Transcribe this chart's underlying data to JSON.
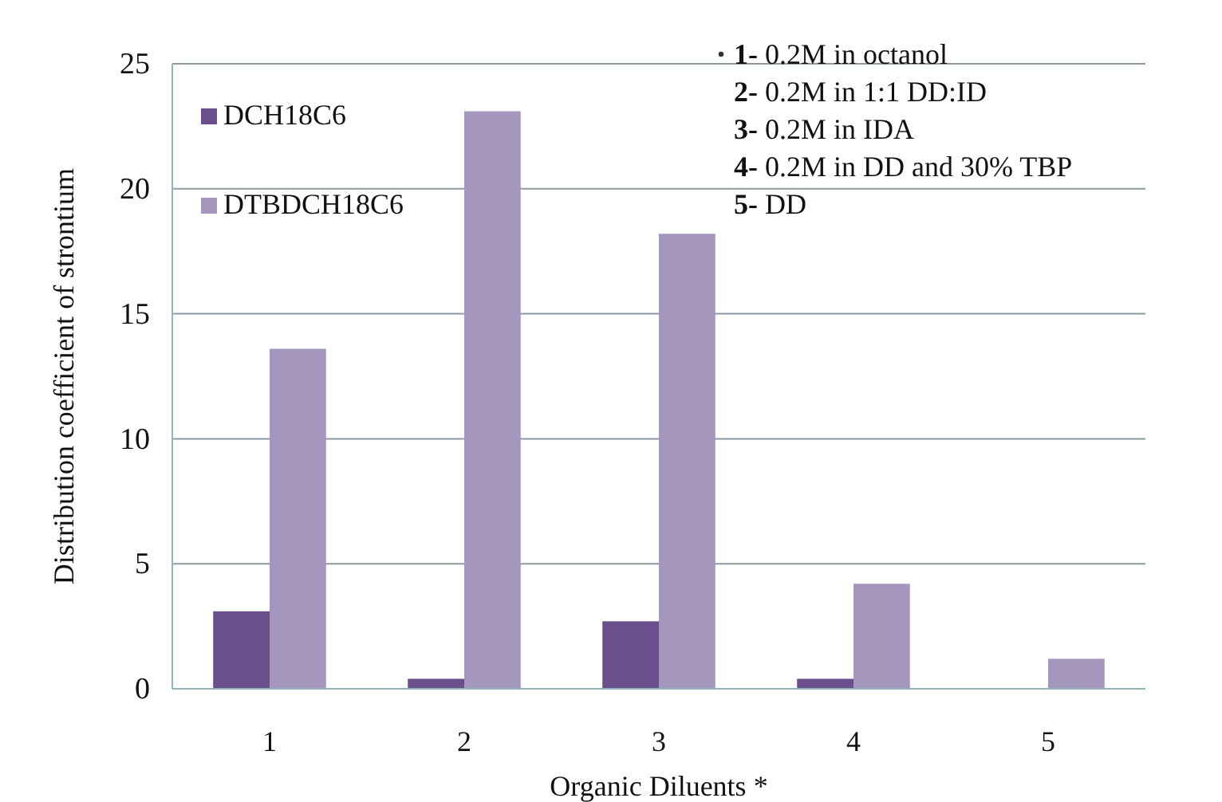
{
  "chart_data": {
    "type": "bar",
    "xlabel": "Organic Diluents *",
    "ylabel": "Distribution coefficient of strontium",
    "categories": [
      "1",
      "2",
      "3",
      "4",
      "5"
    ],
    "series": [
      {
        "name": "DCH18C6",
        "color": "#6a4f8c",
        "values": [
          3.1,
          0.4,
          2.7,
          0.4,
          0
        ]
      },
      {
        "name": "DTBDCH18C6",
        "color": "#a596bd",
        "values": [
          13.6,
          23.1,
          18.2,
          4.2,
          1.2
        ]
      }
    ],
    "ylim": [
      0,
      25
    ],
    "yticks": [
      0,
      5,
      10,
      15,
      20,
      25
    ],
    "grid": "y",
    "legend": "top left",
    "annotations": [
      "1- 0.2M in octanol",
      "2- 0.2M in 1:1 DD:ID",
      "3- 0.2M in IDA",
      "4- 0.2M in DD and 30% TBP",
      "5- DD"
    ]
  }
}
